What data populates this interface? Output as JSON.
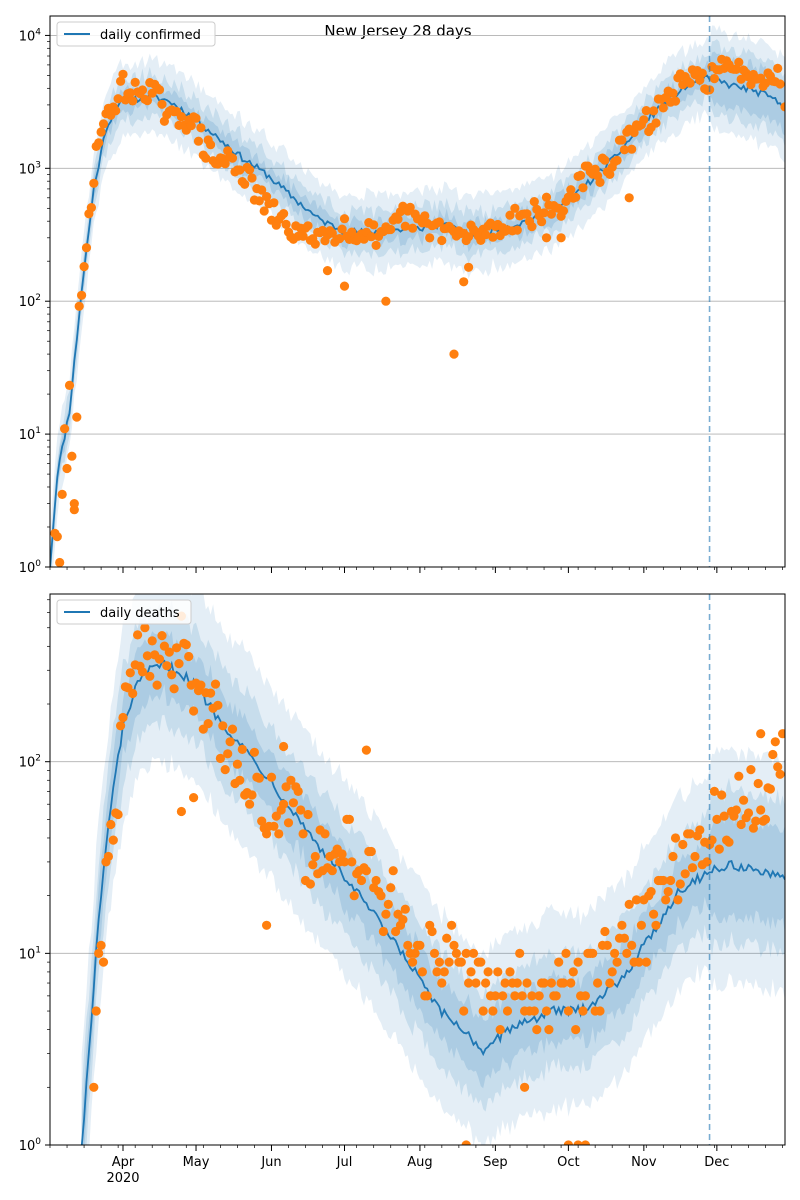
{
  "figure": {
    "title": "New Jersey 28 days",
    "year_label": "2020",
    "month_labels": [
      "Apr",
      "May",
      "Jun",
      "Jul",
      "Aug",
      "Sep",
      "Oct",
      "Nov",
      "Dec"
    ]
  },
  "chart_data": [
    {
      "type": "line",
      "name": "cases",
      "yscale": "log",
      "ylim": [
        1,
        14000
      ],
      "y_ticks": [
        1,
        10,
        100,
        1000,
        10000
      ],
      "y_tick_labels": [
        [
          "10",
          "0"
        ],
        [
          "10",
          "1"
        ],
        [
          "10",
          "2"
        ],
        [
          "10",
          "3"
        ],
        [
          "10",
          "4"
        ]
      ],
      "xlim": [
        "2020-03-02",
        "2020-12-29"
      ],
      "grid": "horizontal major",
      "legend": {
        "placement": "top-left",
        "entries": [
          "daily confirmed"
        ]
      },
      "forecast_start": "2020-11-28",
      "series_color": "#1f77b4",
      "point_color": "#ff7f0e",
      "band_color": "#1f77b4",
      "model_knots": [
        [
          "2020-03-02",
          1
        ],
        [
          "2020-03-05",
          5
        ],
        [
          "2020-03-10",
          15
        ],
        [
          "2020-03-15",
          120
        ],
        [
          "2020-03-20",
          700
        ],
        [
          "2020-03-25",
          2000
        ],
        [
          "2020-03-30",
          3000
        ],
        [
          "2020-04-05",
          3300
        ],
        [
          "2020-04-12",
          3500
        ],
        [
          "2020-04-20",
          3200
        ],
        [
          "2020-04-30",
          2400
        ],
        [
          "2020-05-10",
          1700
        ],
        [
          "2020-05-20",
          1200
        ],
        [
          "2020-05-30",
          900
        ],
        [
          "2020-06-10",
          600
        ],
        [
          "2020-06-20",
          420
        ],
        [
          "2020-06-30",
          340
        ],
        [
          "2020-07-10",
          330
        ],
        [
          "2020-07-20",
          340
        ],
        [
          "2020-07-30",
          350
        ],
        [
          "2020-08-10",
          380
        ],
        [
          "2020-08-20",
          320
        ],
        [
          "2020-08-30",
          340
        ],
        [
          "2020-09-10",
          380
        ],
        [
          "2020-09-20",
          440
        ],
        [
          "2020-09-30",
          550
        ],
        [
          "2020-10-10",
          800
        ],
        [
          "2020-10-20",
          1200
        ],
        [
          "2020-10-30",
          2000
        ],
        [
          "2020-11-10",
          3200
        ],
        [
          "2020-11-20",
          4300
        ],
        [
          "2020-11-28",
          4800
        ],
        [
          "2020-12-05",
          4300
        ],
        [
          "2020-12-15",
          3900
        ],
        [
          "2020-12-22",
          3500
        ],
        [
          "2020-12-29",
          2900
        ]
      ],
      "observed_knots": [
        [
          "2020-03-04",
          2
        ],
        [
          "2020-03-06",
          1
        ],
        [
          "2020-03-08",
          10
        ],
        [
          "2020-03-09",
          6
        ],
        [
          "2020-03-10",
          20
        ],
        [
          "2020-03-12",
          3
        ],
        [
          "2020-03-14",
          75
        ],
        [
          "2020-03-16",
          150
        ],
        [
          "2020-03-18",
          430
        ],
        [
          "2020-03-20",
          900
        ],
        [
          "2020-03-22",
          1900
        ],
        [
          "2020-03-25",
          2200
        ],
        [
          "2020-03-28",
          3000
        ],
        [
          "2020-04-01",
          4200
        ],
        [
          "2020-04-05",
          3500
        ],
        [
          "2020-04-10",
          4100
        ],
        [
          "2020-04-15",
          3500
        ],
        [
          "2020-04-20",
          2200
        ],
        [
          "2020-04-25",
          2600
        ],
        [
          "2020-05-01",
          2000
        ],
        [
          "2020-05-05",
          1400
        ],
        [
          "2020-05-10",
          1100
        ],
        [
          "2020-05-15",
          1200
        ],
        [
          "2020-05-20",
          950
        ],
        [
          "2020-05-25",
          700
        ],
        [
          "2020-05-30",
          500
        ],
        [
          "2020-06-05",
          400
        ],
        [
          "2020-06-10",
          340
        ],
        [
          "2020-06-15",
          300
        ],
        [
          "2020-06-20",
          330
        ],
        [
          "2020-06-25",
          310
        ],
        [
          "2020-07-01",
          400
        ],
        [
          "2020-07-05",
          280
        ],
        [
          "2020-07-10",
          380
        ],
        [
          "2020-07-15",
          270
        ],
        [
          "2020-07-20",
          320
        ],
        [
          "2020-07-25",
          450
        ],
        [
          "2020-07-30",
          400
        ],
        [
          "2020-08-04",
          360
        ],
        [
          "2020-08-09",
          360
        ],
        [
          "2020-08-14",
          330
        ],
        [
          "2020-08-19",
          300
        ],
        [
          "2020-08-24",
          320
        ],
        [
          "2020-08-29",
          340
        ],
        [
          "2020-09-03",
          360
        ],
        [
          "2020-09-08",
          420
        ],
        [
          "2020-09-13",
          430
        ],
        [
          "2020-09-18",
          460
        ],
        [
          "2020-09-23",
          500
        ],
        [
          "2020-09-28",
          480
        ],
        [
          "2020-10-03",
          700
        ],
        [
          "2020-10-08",
          850
        ],
        [
          "2020-10-13",
          900
        ],
        [
          "2020-10-18",
          1100
        ],
        [
          "2020-10-23",
          1400
        ],
        [
          "2020-10-28",
          1800
        ],
        [
          "2020-11-02",
          2200
        ],
        [
          "2020-11-07",
          2800
        ],
        [
          "2020-11-12",
          3600
        ],
        [
          "2020-11-17",
          4300
        ],
        [
          "2020-11-22",
          4600
        ],
        [
          "2020-11-27",
          4700
        ],
        [
          "2020-12-02",
          5500
        ],
        [
          "2020-12-07",
          5300
        ],
        [
          "2020-12-12",
          5600
        ],
        [
          "2020-12-17",
          5000
        ],
        [
          "2020-12-22",
          5200
        ],
        [
          "2020-12-27",
          4800
        ]
      ],
      "observed_outliers": [
        [
          "2020-03-12",
          3
        ],
        [
          "2020-06-24",
          170
        ],
        [
          "2020-07-01",
          130
        ],
        [
          "2020-07-18",
          100
        ],
        [
          "2020-08-15",
          40
        ],
        [
          "2020-08-19",
          140
        ],
        [
          "2020-08-21",
          180
        ],
        [
          "2020-09-22",
          300
        ],
        [
          "2020-09-28",
          300
        ],
        [
          "2020-10-26",
          600
        ],
        [
          "2020-12-29",
          2900
        ]
      ]
    },
    {
      "type": "line",
      "name": "deaths",
      "yscale": "log",
      "ylim": [
        1,
        750
      ],
      "y_ticks": [
        1,
        10,
        100
      ],
      "y_tick_labels": [
        [
          "10",
          "0"
        ],
        [
          "10",
          "1"
        ],
        [
          "10",
          "2"
        ]
      ],
      "xlim": [
        "2020-03-02",
        "2020-12-29"
      ],
      "grid": "horizontal major",
      "legend": {
        "placement": "top-left",
        "entries": [
          "daily deaths"
        ]
      },
      "forecast_start": "2020-11-28",
      "series_color": "#1f77b4",
      "point_color": "#ff7f0e",
      "band_color": "#1f77b4",
      "model_knots": [
        [
          "2020-03-15",
          1
        ],
        [
          "2020-03-18",
          3
        ],
        [
          "2020-03-22",
          15
        ],
        [
          "2020-03-27",
          60
        ],
        [
          "2020-04-01",
          150
        ],
        [
          "2020-04-06",
          240
        ],
        [
          "2020-04-12",
          300
        ],
        [
          "2020-04-18",
          320
        ],
        [
          "2020-04-25",
          290
        ],
        [
          "2020-05-02",
          240
        ],
        [
          "2020-05-10",
          170
        ],
        [
          "2020-05-20",
          120
        ],
        [
          "2020-05-30",
          85
        ],
        [
          "2020-06-10",
          55
        ],
        [
          "2020-06-20",
          37
        ],
        [
          "2020-06-30",
          26
        ],
        [
          "2020-07-10",
          18
        ],
        [
          "2020-07-20",
          12
        ],
        [
          "2020-07-30",
          8
        ],
        [
          "2020-08-09",
          5
        ],
        [
          "2020-08-19",
          4
        ],
        [
          "2020-08-28",
          3
        ],
        [
          "2020-09-05",
          4
        ],
        [
          "2020-09-15",
          4.5
        ],
        [
          "2020-09-25",
          5
        ],
        [
          "2020-10-05",
          5
        ],
        [
          "2020-10-15",
          6
        ],
        [
          "2020-10-25",
          8
        ],
        [
          "2020-11-05",
          13
        ],
        [
          "2020-11-15",
          21
        ],
        [
          "2020-11-28",
          27
        ],
        [
          "2020-12-08",
          29
        ],
        [
          "2020-12-18",
          27
        ],
        [
          "2020-12-29",
          24
        ]
      ],
      "observed_knots": [
        [
          "2020-03-20",
          3
        ],
        [
          "2020-03-25",
          20
        ],
        [
          "2020-03-28",
          50
        ],
        [
          "2020-04-01",
          140
        ],
        [
          "2020-04-05",
          280
        ],
        [
          "2020-04-10",
          420
        ],
        [
          "2020-04-15",
          350
        ],
        [
          "2020-04-20",
          300
        ],
        [
          "2020-04-25",
          420
        ],
        [
          "2020-04-30",
          280
        ],
        [
          "2020-05-05",
          200
        ],
        [
          "2020-05-10",
          170
        ],
        [
          "2020-05-15",
          120
        ],
        [
          "2020-05-20",
          100
        ],
        [
          "2020-05-25",
          80
        ],
        [
          "2020-05-30",
          60
        ],
        [
          "2020-06-05",
          60
        ],
        [
          "2020-06-10",
          50
        ],
        [
          "2020-06-15",
          38
        ],
        [
          "2020-06-20",
          30
        ],
        [
          "2020-06-25",
          40
        ],
        [
          "2020-06-30",
          40
        ],
        [
          "2020-07-05",
          30
        ],
        [
          "2020-07-10",
          30
        ],
        [
          "2020-07-15",
          22
        ],
        [
          "2020-07-20",
          18
        ],
        [
          "2020-07-25",
          15
        ],
        [
          "2020-07-30",
          10
        ],
        [
          "2020-08-04",
          9
        ],
        [
          "2020-08-09",
          10
        ],
        [
          "2020-08-14",
          9
        ],
        [
          "2020-08-19",
          7
        ],
        [
          "2020-08-24",
          7
        ],
        [
          "2020-08-29",
          6
        ],
        [
          "2020-09-03",
          6
        ],
        [
          "2020-09-08",
          8
        ],
        [
          "2020-09-13",
          8
        ],
        [
          "2020-09-18",
          5
        ],
        [
          "2020-09-23",
          6
        ],
        [
          "2020-09-28",
          6
        ],
        [
          "2020-10-03",
          7
        ],
        [
          "2020-10-08",
          6
        ],
        [
          "2020-10-13",
          7
        ],
        [
          "2020-10-18",
          9
        ],
        [
          "2020-10-23",
          11
        ],
        [
          "2020-10-28",
          12
        ],
        [
          "2020-11-02",
          14
        ],
        [
          "2020-11-07",
          20
        ],
        [
          "2020-11-12",
          25
        ],
        [
          "2020-11-17",
          30
        ],
        [
          "2020-11-22",
          35
        ],
        [
          "2020-11-27",
          40
        ],
        [
          "2020-12-02",
          50
        ],
        [
          "2020-12-07",
          55
        ],
        [
          "2020-12-12",
          60
        ],
        [
          "2020-12-17",
          70
        ],
        [
          "2020-12-22",
          80
        ],
        [
          "2020-12-27",
          90
        ]
      ],
      "observed_outliers": [
        [
          "2020-04-25",
          55
        ],
        [
          "2020-04-30",
          65
        ],
        [
          "2020-05-30",
          14
        ],
        [
          "2020-06-06",
          120
        ],
        [
          "2020-07-10",
          115
        ],
        [
          "2020-08-20",
          1
        ],
        [
          "2020-09-13",
          2
        ],
        [
          "2020-10-01",
          1
        ],
        [
          "2020-10-05",
          1
        ],
        [
          "2020-10-08",
          1
        ],
        [
          "2020-12-19",
          140
        ],
        [
          "2020-12-28",
          140
        ]
      ]
    }
  ]
}
